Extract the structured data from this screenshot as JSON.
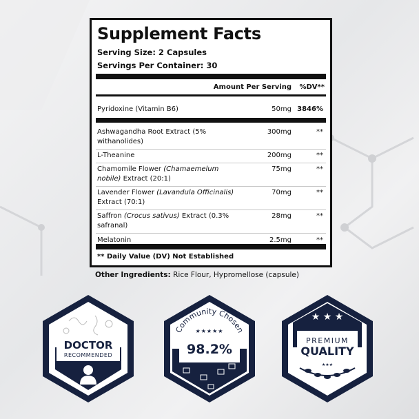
{
  "panel": {
    "title": "Supplement Facts",
    "serving_size": "Serving Size: 2 Capsules",
    "servings_per_container": "Servings Per Container: 30",
    "col_amount": "Amount Per Serving",
    "col_dv": "%DV**",
    "rows": [
      {
        "name": [
          {
            "t": "Pyridoxine (Vitamin B6)",
            "i": false
          }
        ],
        "amount": "50mg",
        "dv": "3846%",
        "thick_after": true
      },
      {
        "name": [
          {
            "t": "Ashwagandha Root Extract  (5% withanolides)",
            "i": false
          }
        ],
        "amount": "300mg",
        "dv": "**"
      },
      {
        "name": [
          {
            "t": "L-Theanine",
            "i": false
          }
        ],
        "amount": "200mg",
        "dv": "**"
      },
      {
        "name": [
          {
            "t": "Chamomile Flower ",
            "i": false
          },
          {
            "t": "(Chamaemelum nobile)",
            "i": true
          },
          {
            "t": " Extract (20:1)",
            "i": false
          }
        ],
        "amount": "75mg",
        "dv": "**"
      },
      {
        "name": [
          {
            "t": "Lavender Flower ",
            "i": false
          },
          {
            "t": "(Lavandula Officinalis)",
            "i": true
          },
          {
            "t": " Extract (70:1)",
            "i": false
          }
        ],
        "amount": "70mg",
        "dv": "**"
      },
      {
        "name": [
          {
            "t": "Saffron ",
            "i": false
          },
          {
            "t": "(Crocus sativus)",
            "i": true
          },
          {
            "t": " Extract (0.3%  safranal)",
            "i": false
          }
        ],
        "amount": "28mg",
        "dv": "**"
      },
      {
        "name": [
          {
            "t": "Melatonin",
            "i": false
          }
        ],
        "amount": "2.5mg",
        "dv": "**"
      }
    ],
    "footnote": "** Daily Value (DV) Not Established"
  },
  "other_ingredients": {
    "label": "Other Ingredients:",
    "value": " Rice Flour, Hypromellose (capsule)"
  },
  "badges": {
    "doctor": {
      "line1": "DOCTOR",
      "line2": "RECOMMENDED",
      "icon": "doctor-icon"
    },
    "community": {
      "arc": "Community Chosen",
      "stars": "★★★★★",
      "value": "98.2%"
    },
    "premium": {
      "stars": "★ ★ ★",
      "line1": "PREMIUM",
      "line2": "QUALITY",
      "small_stars": "★★★",
      "icon": "laurel-icon"
    }
  },
  "colors": {
    "navy": "#16213f",
    "ink": "#111111"
  }
}
